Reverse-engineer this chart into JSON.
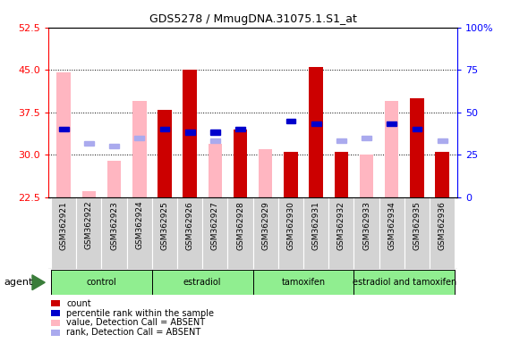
{
  "title": "GDS5278 / MmugDNA.31075.1.S1_at",
  "samples": [
    "GSM362921",
    "GSM362922",
    "GSM362923",
    "GSM362924",
    "GSM362925",
    "GSM362926",
    "GSM362927",
    "GSM362928",
    "GSM362929",
    "GSM362930",
    "GSM362931",
    "GSM362932",
    "GSM362933",
    "GSM362934",
    "GSM362935",
    "GSM362936"
  ],
  "count_present": [
    null,
    null,
    null,
    null,
    38.0,
    45.0,
    null,
    34.5,
    null,
    30.5,
    45.5,
    30.5,
    null,
    null,
    40.0,
    30.5
  ],
  "count_absent": [
    44.5,
    23.5,
    29.0,
    39.5,
    null,
    null,
    32.0,
    null,
    31.0,
    null,
    null,
    null,
    30.0,
    39.5,
    null,
    null
  ],
  "rank_present": [
    34.5,
    null,
    null,
    null,
    34.5,
    34.0,
    34.0,
    34.5,
    null,
    36.0,
    35.5,
    null,
    null,
    35.5,
    34.5,
    null
  ],
  "rank_absent": [
    null,
    32.0,
    31.5,
    33.0,
    null,
    null,
    32.5,
    null,
    null,
    null,
    null,
    32.5,
    33.0,
    null,
    null,
    32.5
  ],
  "ylim_left": [
    22.5,
    52.5
  ],
  "ylim_right": [
    0,
    100
  ],
  "yticks_left": [
    22.5,
    30.0,
    37.5,
    45.0,
    52.5
  ],
  "yticks_right_vals": [
    0,
    25,
    50,
    75,
    100
  ],
  "yticks_right_labels": [
    "0",
    "25",
    "50",
    "75",
    "100%"
  ],
  "color_count_present": "#CC0000",
  "color_count_absent": "#FFB6C1",
  "color_rank_present": "#0000CC",
  "color_rank_absent": "#AAAAEE",
  "bar_width": 0.55,
  "groups": [
    {
      "label": "control",
      "start": 0,
      "end": 3
    },
    {
      "label": "estradiol",
      "start": 4,
      "end": 7
    },
    {
      "label": "tamoxifen",
      "start": 8,
      "end": 11
    },
    {
      "label": "estradiol and tamoxifen",
      "start": 12,
      "end": 15
    }
  ],
  "group_color": "#90EE90",
  "sample_bg_color": "#D3D3D3",
  "legend_items": [
    {
      "color": "#CC0000",
      "label": "count"
    },
    {
      "color": "#0000CC",
      "label": "percentile rank within the sample"
    },
    {
      "color": "#FFB6C1",
      "label": "value, Detection Call = ABSENT"
    },
    {
      "color": "#AAAAEE",
      "label": "rank, Detection Call = ABSENT"
    }
  ]
}
